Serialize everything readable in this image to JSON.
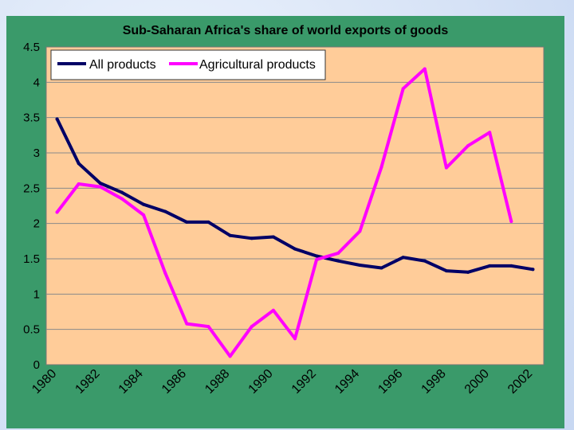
{
  "chart_data": {
    "type": "line",
    "title": "Sub-Saharan Africa's share of world exports of goods",
    "xlabel": "",
    "ylabel": "",
    "ylim": [
      0,
      4.5
    ],
    "y_ticks": [
      "0",
      "0.5",
      "1",
      "1.5",
      "2",
      "2.5",
      "3",
      "3.5",
      "4",
      "4.5"
    ],
    "x_tick_labels": [
      "1980",
      "1982",
      "1984",
      "1986",
      "1988",
      "1990",
      "1992",
      "1994",
      "1996",
      "1998",
      "2000",
      "2002"
    ],
    "x": [
      1980,
      1981,
      1982,
      1983,
      1984,
      1985,
      1986,
      1987,
      1988,
      1989,
      1990,
      1991,
      1992,
      1993,
      1994,
      1995,
      1996,
      1997,
      1998,
      1999,
      2000,
      2001,
      2002
    ],
    "legend_position": "top-left",
    "series": [
      {
        "name": "All products",
        "color": "#000066",
        "values": [
          3.48,
          2.85,
          2.57,
          2.44,
          2.27,
          2.17,
          2.02,
          2.02,
          1.83,
          1.79,
          1.81,
          1.64,
          1.54,
          1.47,
          1.41,
          1.37,
          1.52,
          1.47,
          1.33,
          1.31,
          1.4,
          1.4,
          1.35
        ]
      },
      {
        "name": "Agricultural products",
        "color": "#ff00ff",
        "values": [
          2.16,
          2.56,
          2.52,
          2.35,
          2.12,
          1.3,
          0.58,
          0.54,
          0.12,
          0.54,
          0.77,
          0.37,
          1.49,
          1.58,
          1.89,
          2.8,
          3.91,
          4.19,
          2.79,
          3.1,
          3.29,
          2.03,
          null
        ]
      }
    ]
  }
}
